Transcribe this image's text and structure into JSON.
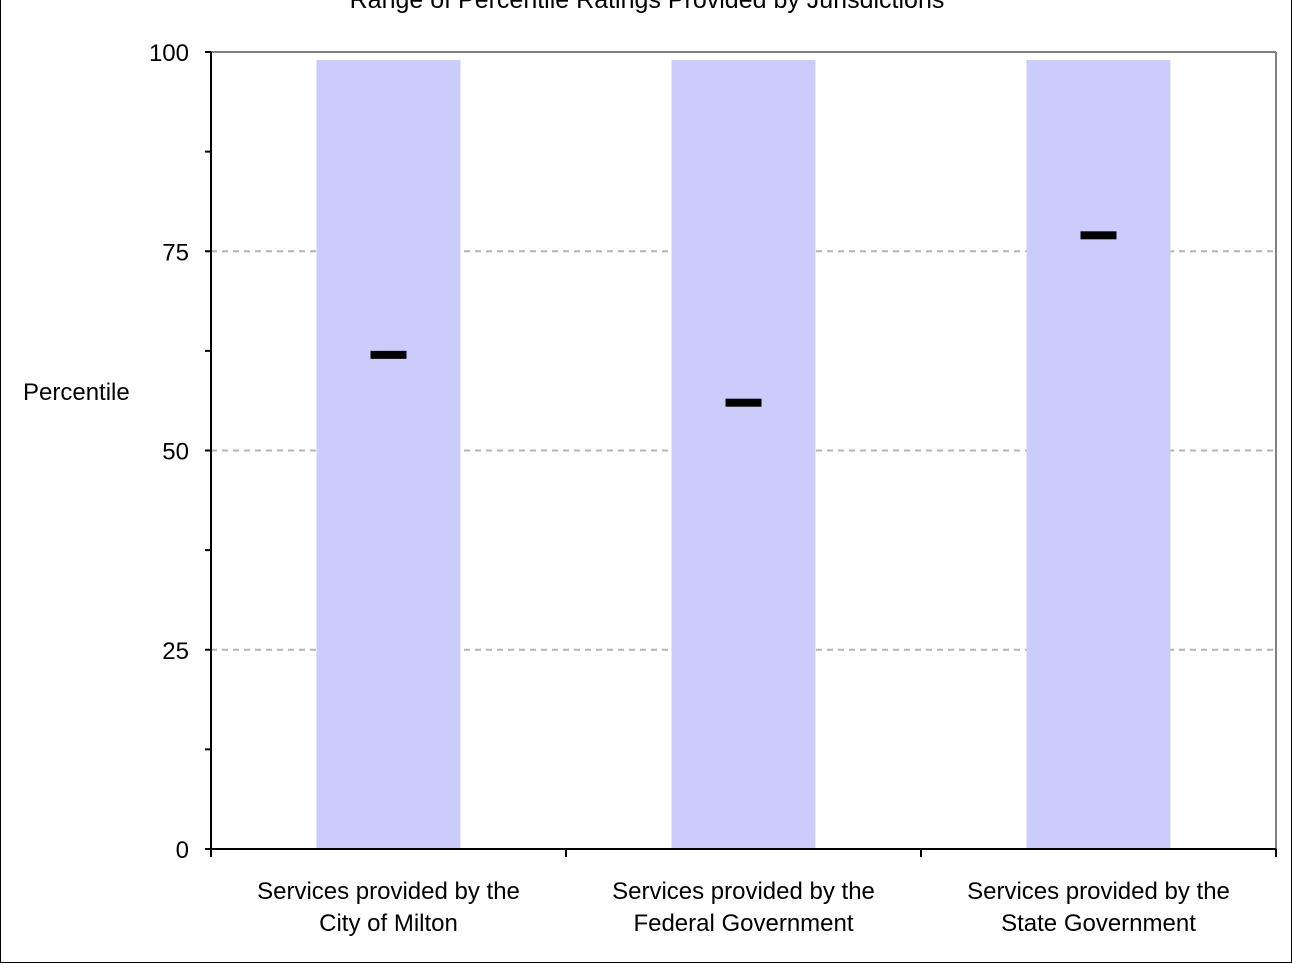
{
  "chart_data": {
    "type": "bar",
    "title": "Range of Percentile Ratings Provided by Jurisdictions",
    "xlabel": "",
    "ylabel": "Percentile",
    "ylim": [
      0,
      100
    ],
    "y_ticks": [
      "0",
      "25",
      "50",
      "75",
      "100"
    ],
    "grid": true,
    "categories": [
      [
        "Services provided by the",
        "City of Milton"
      ],
      [
        "Services provided by the",
        "Federal Government"
      ],
      [
        "Services provided by the",
        "State Government"
      ]
    ],
    "range_low": [
      0,
      0,
      0
    ],
    "range_high": [
      99,
      99,
      99
    ],
    "values": [
      62,
      56,
      77
    ],
    "colors": {
      "range_bar": "#ccccfc",
      "marker": "#000000",
      "gridline": "#b3b3b3",
      "frame": "#808080"
    }
  }
}
